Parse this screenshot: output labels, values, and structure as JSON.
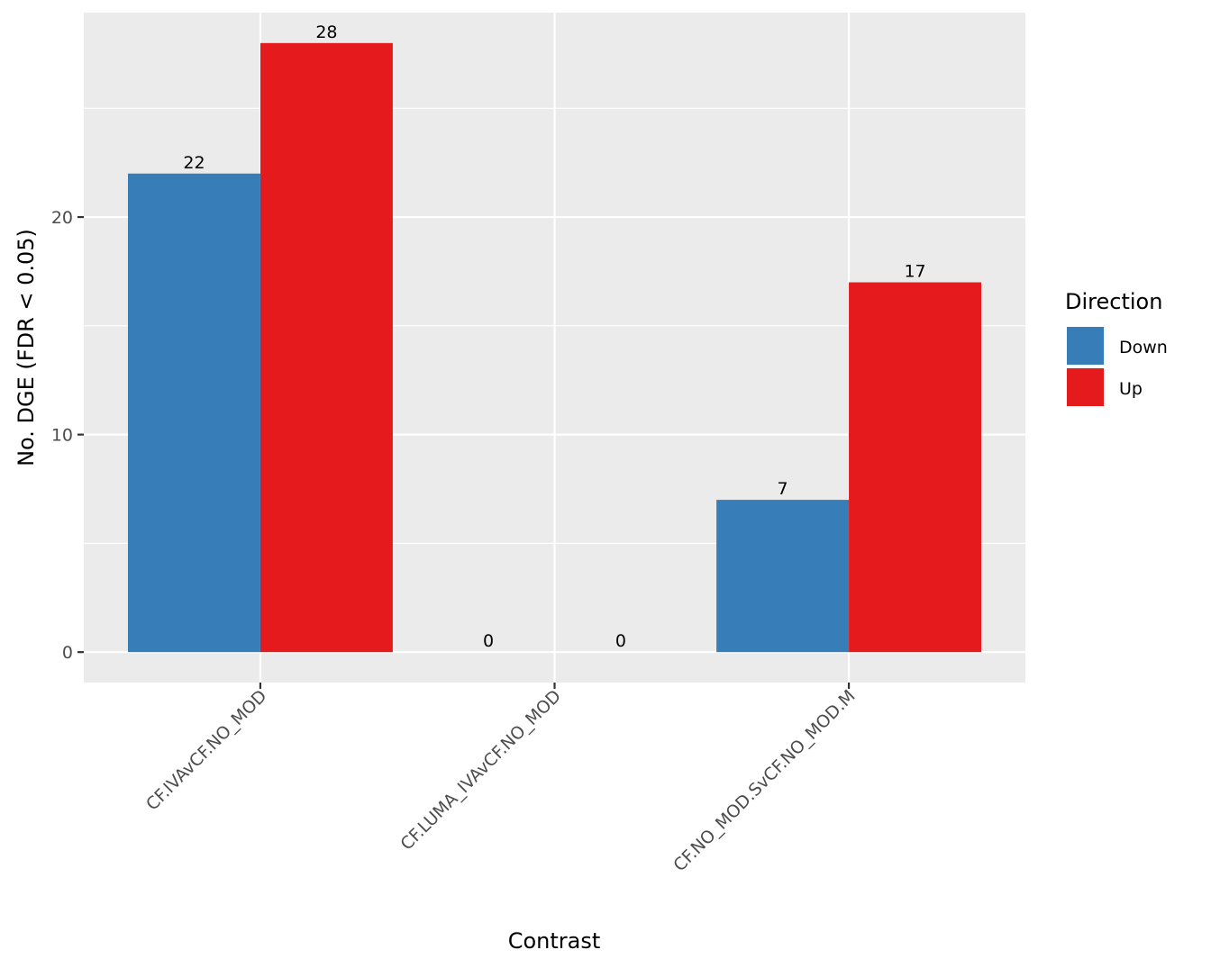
{
  "chart_data": {
    "type": "bar",
    "title": "",
    "xlabel": "Contrast",
    "ylabel": "No. DGE (FDR < 0.05)",
    "categories": [
      "CF.IVAvCF.NO_MOD",
      "CF.LUMA_IVAvCF.NO_MOD",
      "CF.NO_MOD.SvCF.NO_MOD.M"
    ],
    "series": [
      {
        "name": "Down",
        "color": "#377EB8",
        "values": [
          22,
          0,
          7
        ]
      },
      {
        "name": "Up",
        "color": "#E41A1C",
        "values": [
          28,
          0,
          17
        ]
      }
    ],
    "ylim": [
      -1.4,
      29.4
    ],
    "yticks": [
      0,
      10,
      20
    ],
    "grid": true,
    "legend": {
      "title": "Direction",
      "position": "right"
    },
    "panel_background": "#EBEBEB",
    "grid_color": "#FFFFFF"
  }
}
